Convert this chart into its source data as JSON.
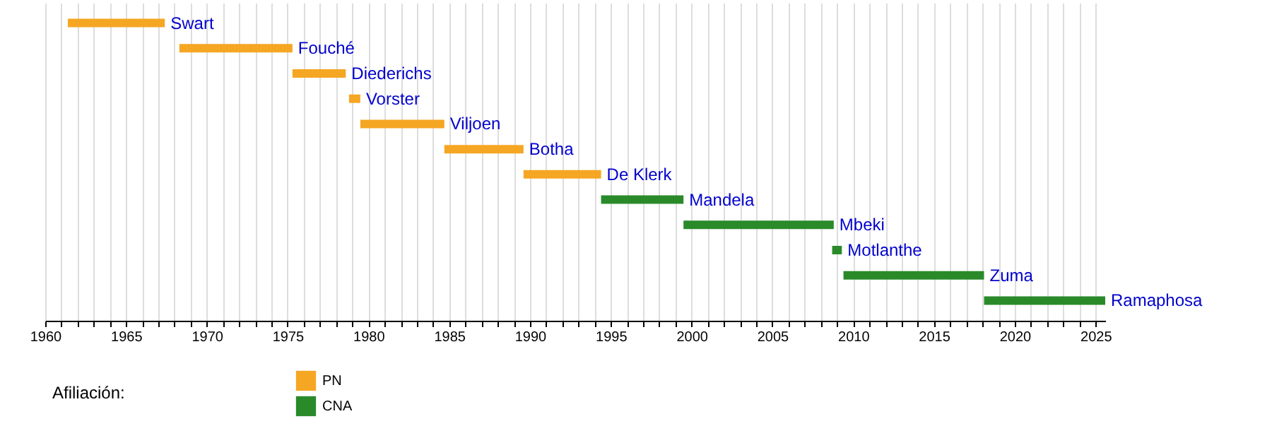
{
  "chart_data": {
    "type": "bar",
    "orientation": "horizontal",
    "categories": [
      "Swart",
      "Fouché",
      "Diederichs",
      "Vorster",
      "Viljoen",
      "Botha",
      "De Klerk",
      "Mandela",
      "Mbeki",
      "Motlanthe",
      "Zuma",
      "Ramaphosa"
    ],
    "series": [
      {
        "name": "PN",
        "color": "#f5a623",
        "base": [
          1961.4,
          1968.3,
          1975.3,
          1978.8,
          1979.5,
          1984.7,
          1989.6,
          null,
          null,
          null,
          null,
          null
        ],
        "values": [
          6.0,
          7.0,
          3.3,
          0.7,
          5.2,
          4.9,
          4.8,
          null,
          null,
          null,
          null,
          null
        ]
      },
      {
        "name": "CNA",
        "color": "#2a8a2a",
        "base": [
          null,
          null,
          null,
          null,
          null,
          null,
          null,
          1994.4,
          1999.5,
          2008.7,
          2009.4,
          2018.1
        ],
        "values": [
          null,
          null,
          null,
          null,
          null,
          null,
          null,
          5.1,
          9.3,
          0.6,
          8.7,
          7.5
        ]
      }
    ],
    "legend_title": "Afiliación:",
    "legend": "bottom left",
    "xlim": [
      1960,
      2025.6
    ],
    "xticks": [
      1960,
      {
        "value": 1961,
        "label": null
      },
      {
        "value": 1962,
        "label": null
      },
      {
        "value": 1963,
        "label": null
      },
      {
        "value": 1964,
        "label": null
      },
      1965,
      {
        "value": 1966,
        "label": null
      },
      {
        "value": 1967,
        "label": null
      },
      {
        "value": 1968,
        "label": null
      },
      {
        "value": 1969,
        "label": null
      },
      1970,
      {
        "value": 1971,
        "label": null
      },
      {
        "value": 1972,
        "label": null
      },
      {
        "value": 1973,
        "label": null
      },
      {
        "value": 1974,
        "label": null
      },
      1975,
      {
        "value": 1976,
        "label": null
      },
      {
        "value": 1977,
        "label": null
      },
      {
        "value": 1978,
        "label": null
      },
      {
        "value": 1979,
        "label": null
      },
      1980,
      {
        "value": 1981,
        "label": null
      },
      {
        "value": 1982,
        "label": null
      },
      {
        "value": 1983,
        "label": null
      },
      {
        "value": 1984,
        "label": null
      },
      1985,
      {
        "value": 1986,
        "label": null
      },
      {
        "value": 1987,
        "label": null
      },
      {
        "value": 1988,
        "label": null
      },
      {
        "value": 1989,
        "label": null
      },
      1990,
      {
        "value": 1991,
        "label": null
      },
      {
        "value": 1992,
        "label": null
      },
      {
        "value": 1993,
        "label": null
      },
      {
        "value": 1994,
        "label": null
      },
      1995,
      {
        "value": 1996,
        "label": null
      },
      {
        "value": 1997,
        "label": null
      },
      {
        "value": 1998,
        "label": null
      },
      {
        "value": 1999,
        "label": null
      },
      2000,
      {
        "value": 2001,
        "label": null
      },
      {
        "value": 2002,
        "label": null
      },
      {
        "value": 2003,
        "label": null
      },
      {
        "value": 2004,
        "label": null
      },
      2005,
      {
        "value": 2006,
        "label": null
      },
      {
        "value": 2007,
        "label": null
      },
      {
        "value": 2008,
        "label": null
      },
      {
        "value": 2009,
        "label": null
      },
      2010,
      {
        "value": 2011,
        "label": null
      },
      {
        "value": 2012,
        "label": null
      },
      {
        "value": 2013,
        "label": null
      },
      {
        "value": 2014,
        "label": null
      },
      2015,
      {
        "value": 2016,
        "label": null
      },
      {
        "value": 2017,
        "label": null
      },
      {
        "value": 2018,
        "label": null
      },
      {
        "value": 2019,
        "label": null
      },
      2020,
      {
        "value": 2021,
        "label": null
      },
      {
        "value": 2022,
        "label": null
      },
      {
        "value": 2023,
        "label": null
      },
      {
        "value": 2024,
        "label": null
      },
      2025
    ],
    "grid": "x",
    "tick_labels": "x"
  }
}
